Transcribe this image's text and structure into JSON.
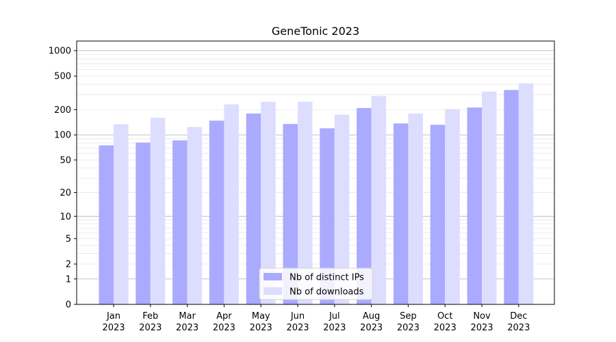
{
  "chart_data": {
    "type": "bar",
    "title": "GeneTonic 2023",
    "xlabel": "",
    "ylabel": "",
    "y_scale": "log-like (0, 1, 2, 5, 10, ...)",
    "ylim": [
      0,
      1300
    ],
    "y_ticks": [
      "0",
      "1",
      "2",
      "5",
      "10",
      "20",
      "50",
      "100",
      "200",
      "500",
      "1000"
    ],
    "categories": [
      [
        "Jan",
        "2023"
      ],
      [
        "Feb",
        "2023"
      ],
      [
        "Mar",
        "2023"
      ],
      [
        "Apr",
        "2023"
      ],
      [
        "May",
        "2023"
      ],
      [
        "Jun",
        "2023"
      ],
      [
        "Jul",
        "2023"
      ],
      [
        "Aug",
        "2023"
      ],
      [
        "Sep",
        "2023"
      ],
      [
        "Oct",
        "2023"
      ],
      [
        "Nov",
        "2023"
      ],
      [
        "Dec",
        "2023"
      ]
    ],
    "series": [
      {
        "name": "Nb of distinct IPs",
        "color": "#aaaaff",
        "values": [
          75,
          81,
          86,
          148,
          180,
          135,
          120,
          209,
          137,
          132,
          212,
          342
        ]
      },
      {
        "name": "Nb of downloads",
        "color": "#ddddff",
        "values": [
          134,
          160,
          124,
          231,
          248,
          248,
          174,
          290,
          180,
          203,
          327,
          410
        ]
      }
    ],
    "legend_position": "lower-center",
    "grid": true
  }
}
